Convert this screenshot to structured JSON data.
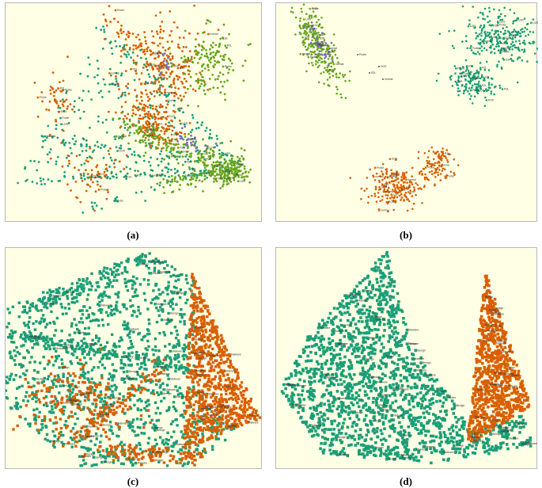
{
  "figure": {
    "colors": {
      "teal": "#1b9e77",
      "orange": "#d95f02",
      "green": "#66a61e",
      "purple": "#7570b3",
      "background": "#ffffe6"
    }
  },
  "panels": [
    {
      "id": "a",
      "caption": "(a)",
      "chart_data": {
        "type": "scatter",
        "title": "",
        "xlabel": "",
        "ylabel": "",
        "grid": false,
        "legend": "none",
        "point_labels": [
          "Probe",
          "DOS",
          "normal",
          "R2L",
          "U2R"
        ],
        "series": [
          {
            "color": "teal"
          },
          {
            "color": "orange"
          },
          {
            "color": "green"
          },
          {
            "color": "purple"
          }
        ]
      }
    },
    {
      "id": "b",
      "caption": "(b)",
      "chart_data": {
        "type": "scatter",
        "title": "",
        "xlabel": "",
        "ylabel": "",
        "grid": false,
        "legend": "none",
        "point_labels": [
          "Probe",
          "DOS",
          "normal",
          "R2L",
          "U2R"
        ],
        "series": [
          {
            "color": "green"
          },
          {
            "color": "purple"
          },
          {
            "color": "teal"
          },
          {
            "color": "orange"
          }
        ]
      }
    },
    {
      "id": "c",
      "caption": "(c)",
      "chart_data": {
        "type": "scatter",
        "title": "",
        "xlabel": "",
        "ylabel": "",
        "grid": false,
        "legend": "none",
        "point_labels": [
          "Benign",
          "Malware"
        ],
        "series": [
          {
            "color": "teal"
          },
          {
            "color": "orange"
          }
        ]
      }
    },
    {
      "id": "d",
      "caption": "(d)",
      "chart_data": {
        "type": "scatter",
        "title": "",
        "xlabel": "",
        "ylabel": "",
        "grid": false,
        "legend": "none",
        "point_labels": [
          "Benign",
          "Malware"
        ],
        "series": [
          {
            "color": "teal"
          },
          {
            "color": "orange"
          }
        ]
      }
    }
  ]
}
